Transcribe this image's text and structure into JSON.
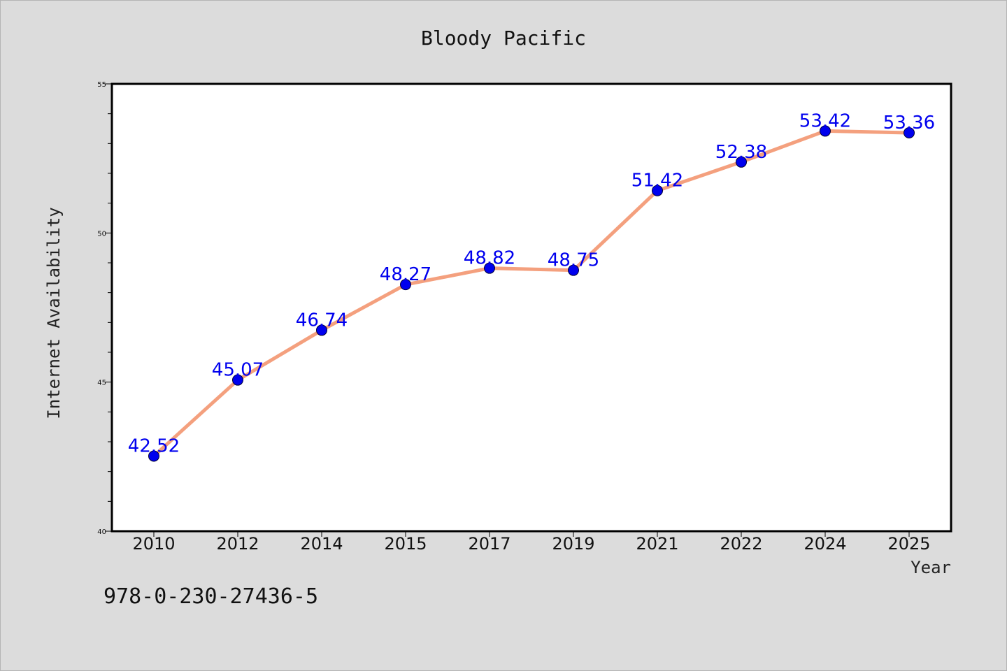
{
  "chart_data": {
    "type": "line",
    "title": "Bloody Pacific",
    "xlabel": "Year",
    "ylabel": "Internet Availability",
    "categories": [
      "2010",
      "2012",
      "2014",
      "2015",
      "2017",
      "2019",
      "2021",
      "2022",
      "2024",
      "2025"
    ],
    "series": [
      {
        "values": [
          42.52,
          45.07,
          46.74,
          48.27,
          48.82,
          48.75,
          51.42,
          52.38,
          53.42,
          53.36
        ],
        "line_color": "#f4a07e",
        "marker_color": "#0000ee"
      }
    ],
    "data_labels": [
      "42.52",
      "45.07",
      "46.74",
      "48.27",
      "48.82",
      "48.75",
      "51.42",
      "52.38",
      "53.42",
      "53.36"
    ],
    "ylim": [
      40,
      55
    ],
    "yticks": [
      40,
      45,
      50,
      55
    ],
    "ytick_labels": [
      "40",
      "45",
      "50",
      "55"
    ],
    "grid": false,
    "legend": "none"
  },
  "footer": {
    "isbn": "978-0-230-27436-5"
  }
}
